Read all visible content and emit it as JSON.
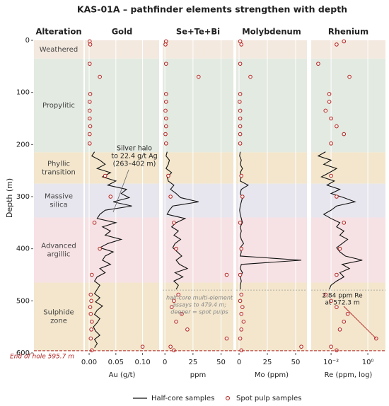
{
  "chart_data": {
    "type": "well-log",
    "title": "KAS-01A – pathfinder elements strengthen with depth",
    "ylabel": "Depth (m)",
    "ylim": [
      0,
      600
    ],
    "yticks": [
      0,
      100,
      200,
      300,
      400,
      500,
      600
    ],
    "y_inverted": true,
    "grid": true,
    "zones_title": "Alteration",
    "zones": [
      {
        "lines": [
          "Weathered"
        ],
        "top": 0,
        "bottom": 35,
        "color": "#f3e9df"
      },
      {
        "lines": [
          "Propylitic"
        ],
        "top": 35,
        "bottom": 215,
        "color": "#e3eae1"
      },
      {
        "lines": [
          "Phyllic",
          "transition"
        ],
        "top": 215,
        "bottom": 275,
        "color": "#f3e6cc"
      },
      {
        "lines": [
          "Massive",
          "silica"
        ],
        "top": 275,
        "bottom": 340,
        "color": "#e7e6ee"
      },
      {
        "lines": [
          "Advanced",
          "argillic"
        ],
        "top": 340,
        "bottom": 465,
        "color": "#f6e1e4"
      },
      {
        "lines": [
          "Sulphide",
          "zone"
        ],
        "top": 465,
        "bottom": 595.7,
        "color": "#f3e6cc"
      }
    ],
    "series": [
      {
        "name": "Half-core samples",
        "color": "#111111",
        "marker": "line"
      },
      {
        "name": "Spot pulp samples",
        "color": "#b22222",
        "marker": "circle"
      }
    ],
    "half_core_depth": [
      214,
      222,
      230,
      238,
      246,
      254,
      262,
      270,
      278,
      286,
      294,
      302,
      310,
      318,
      326,
      334,
      342,
      350,
      358,
      366,
      374,
      382,
      390,
      398,
      406,
      414,
      422,
      430,
      438,
      446,
      454,
      462,
      470,
      478,
      486,
      494,
      502,
      510,
      518,
      526,
      534,
      542,
      550,
      558,
      566,
      574,
      582,
      590
    ],
    "spot_pulp_depth": [
      2,
      8,
      45,
      70,
      103,
      118,
      135,
      150,
      165,
      180,
      198,
      260,
      300,
      350,
      400,
      450,
      488,
      500,
      512,
      525,
      540,
      555,
      572.3,
      588,
      595
    ],
    "panels": [
      {
        "title": "Gold",
        "xlabel": "Au (g/t)",
        "xlim": [
          -0.008,
          0.131
        ],
        "log": false,
        "xticks": [
          {
            "value": 0,
            "label": "0.00"
          },
          {
            "value": 0.05,
            "label": "0.05"
          },
          {
            "value": 0.1,
            "label": "0.10"
          }
        ],
        "half_core": [
          0.01,
          0.005,
          0.02,
          0.03,
          0.015,
          0.04,
          0.025,
          0.05,
          0.035,
          0.07,
          0.06,
          0.075,
          0.045,
          0.08,
          0.03,
          0.02,
          0.015,
          0.05,
          0.025,
          0.04,
          0.03,
          0.06,
          0.035,
          0.02,
          0.045,
          0.03,
          0.025,
          0.04,
          0.02,
          0.03,
          0.015,
          0.01,
          0.02,
          0.015,
          0.01,
          0.02,
          0.012,
          0.025,
          0.015,
          0.01,
          0.02,
          0.015,
          0.008,
          0.012,
          0.02,
          0.01,
          0.015,
          0.01
        ],
        "spot_pulp": [
          0.001,
          0.002,
          0.001,
          0.02,
          0.002,
          0.001,
          0.001,
          0.001,
          0.002,
          0.001,
          0.001,
          0.03,
          0.04,
          0.01,
          0.02,
          0.005,
          0.003,
          0.004,
          0.002,
          0.003,
          0.005,
          0.004,
          0.003,
          0.1,
          0.005
        ]
      },
      {
        "title": "Se+Te+Bi",
        "xlabel": "ppm",
        "xlim": [
          -2,
          61
        ],
        "log": false,
        "xticks": [
          0,
          25,
          50
        ],
        "half_core": [
          2,
          1,
          4,
          3,
          1,
          6,
          2,
          3,
          8,
          5,
          10,
          14,
          30,
          7,
          4,
          2,
          18,
          10,
          6,
          12,
          8,
          14,
          9,
          7,
          11,
          15,
          10,
          13,
          20,
          9,
          16,
          8,
          12,
          10,
          null,
          null,
          null,
          null,
          null,
          null,
          null,
          null,
          null,
          null,
          null,
          null,
          null,
          null
        ],
        "spot_pulp": [
          1,
          0.5,
          1,
          30,
          1,
          1,
          0.5,
          1,
          1,
          0.5,
          1,
          3,
          5,
          8,
          10,
          55,
          12,
          8,
          6,
          15,
          10,
          20,
          55,
          5,
          8
        ]
      },
      {
        "title": "Molybdenum",
        "xlabel": "Mo (ppm)",
        "xlim": [
          -2.5,
          60
        ],
        "log": false,
        "xticks": [
          0,
          25,
          50
        ],
        "half_core": [
          1,
          0.5,
          2,
          1,
          3,
          1,
          2,
          1,
          8,
          2,
          1,
          3,
          2,
          1,
          0.5,
          1,
          2,
          3,
          1,
          2,
          1,
          2,
          4,
          1,
          2,
          1,
          55,
          2,
          1,
          3,
          1,
          2,
          1,
          1,
          null,
          null,
          null,
          null,
          null,
          null,
          null,
          null,
          null,
          null,
          null,
          null,
          null,
          null
        ],
        "spot_pulp": [
          1,
          2,
          1,
          10,
          1,
          0.5,
          1,
          1,
          1,
          1,
          1,
          2,
          3,
          1,
          2,
          1,
          2,
          1,
          3,
          2,
          4,
          2,
          1,
          55,
          2
        ]
      },
      {
        "title": "Rhenium",
        "xlabel": "Re (ppm, log)",
        "xlim": [
          0.00083,
          9.1
        ],
        "log": true,
        "xticks": [
          {
            "value": 0.01,
            "label": "10⁻²"
          },
          {
            "value": 1,
            "label": "10⁰"
          }
        ],
        "half_core": [
          0.005,
          0.002,
          0.01,
          0.004,
          0.02,
          0.008,
          0.003,
          0.015,
          0.006,
          0.03,
          0.01,
          0.05,
          0.2,
          0.02,
          0.01,
          0.004,
          0.01,
          0.03,
          0.02,
          0.05,
          0.03,
          0.08,
          0.04,
          0.02,
          0.03,
          0.06,
          0.5,
          0.04,
          0.1,
          0.03,
          0.05,
          0.02,
          0.01,
          0.008,
          null,
          null,
          null,
          null,
          null,
          null,
          null,
          null,
          null,
          null,
          null,
          null,
          null,
          null
        ],
        "spot_pulp": [
          0.05,
          0.02,
          0.002,
          0.1,
          0.008,
          0.008,
          0.005,
          0.01,
          0.02,
          0.05,
          0.01,
          0.01,
          0.02,
          0.05,
          0.03,
          0.02,
          0.005,
          0.01,
          0.02,
          0.08,
          0.05,
          0.03,
          2.84,
          0.01,
          0.02
        ]
      }
    ],
    "multi_element_depth": 479.4,
    "end_of_hole": 595.7,
    "end_of_hole_label": "End of hole 595.7 m",
    "annotations": [
      {
        "lines": [
          "Silver halo",
          "to 22.4 g/t Ag",
          "(263–402 m)"
        ]
      },
      {
        "lines": [
          "half-core multi-element",
          "assays to 479.4 m;",
          "deeper = spot pulps"
        ]
      },
      {
        "lines": [
          "2.84 ppm Re",
          "at 572.3 m"
        ],
        "xy": [
          2.84,
          572.3
        ]
      }
    ]
  }
}
